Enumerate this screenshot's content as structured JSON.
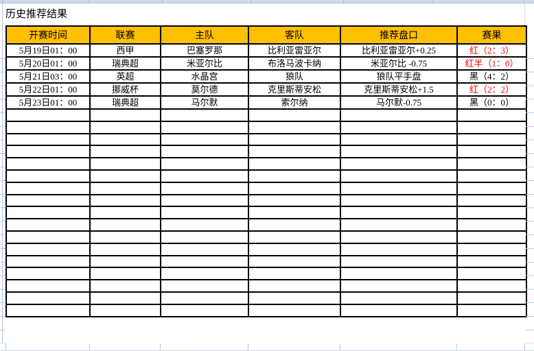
{
  "title": "历史推荐结果",
  "colors": {
    "header_bg": "#FFC000",
    "result_red": "#FF0000",
    "result_black": "#000000",
    "gridline_blue": "#b9c9dd",
    "border_black": "#000000"
  },
  "table": {
    "headers": [
      "开赛时间",
      "联赛",
      "主队",
      "客队",
      "推荐盘口",
      "赛果"
    ],
    "rows": [
      {
        "time": "5月19日01：00",
        "league": "西甲",
        "home": "巴塞罗那",
        "away": "比利亚雷亚尔",
        "handicap": "比利亚雷亚尔+0.25",
        "result": "红（2：3）",
        "result_color": "red"
      },
      {
        "time": "5月20日01：00",
        "league": "瑞典超",
        "home": "米亚尔比",
        "away": "布洛马波卡纳",
        "handicap": "米亚尔比 -0.75",
        "result": "红半（1：0）",
        "result_color": "red"
      },
      {
        "time": "5月21日03：00",
        "league": "英超",
        "home": "水晶宫",
        "away": "狼队",
        "handicap": "狼队平手盘",
        "result": "黑（4：2）",
        "result_color": "black"
      },
      {
        "time": "5月22日01：00",
        "league": "挪威杯",
        "home": "莫尔德",
        "away": "克里斯蒂安松",
        "handicap": "克里斯蒂安松+1.5",
        "result": "红（2：2）",
        "result_color": "red"
      },
      {
        "time": "5月23日01：00",
        "league": "瑞典超",
        "home": "马尔默",
        "away": "索尔纳",
        "handicap": "马尔默-0.75",
        "result": "黑（0：0）",
        "result_color": "black"
      }
    ],
    "empty_row_count": 17
  }
}
